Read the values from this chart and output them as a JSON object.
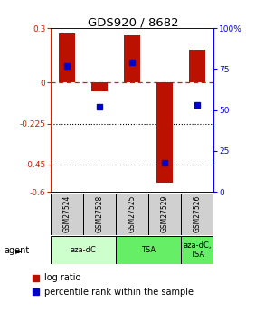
{
  "title": "GDS920 / 8682",
  "samples": [
    "GSM27524",
    "GSM27528",
    "GSM27525",
    "GSM27529",
    "GSM27526"
  ],
  "log_ratio": [
    0.27,
    -0.05,
    0.26,
    -0.55,
    0.18
  ],
  "percentile_rank": [
    77,
    52,
    79,
    18,
    53
  ],
  "ylim_left": [
    -0.6,
    0.3
  ],
  "ylim_right": [
    0,
    100
  ],
  "yticks_left": [
    0.3,
    0.0,
    -0.225,
    -0.45,
    -0.6
  ],
  "yticks_right": [
    100,
    75,
    50,
    25,
    0
  ],
  "hlines_dotted": [
    -0.225,
    -0.45
  ],
  "dashed_hline": 0.0,
  "bar_color": "#bb1100",
  "dot_color": "#0000cc",
  "bar_width": 0.5,
  "agent_groups": [
    {
      "label": "aza-dC",
      "start": 0,
      "end": 2,
      "color": "#ccffcc"
    },
    {
      "label": "TSA",
      "start": 2,
      "end": 4,
      "color": "#66ee66"
    },
    {
      "label": "aza-dC,\nTSA",
      "start": 4,
      "end": 5,
      "color": "#66ee66"
    }
  ],
  "gsm_bg": "#d0d0d0",
  "legend_items": [
    "log ratio",
    "percentile rank within the sample"
  ]
}
